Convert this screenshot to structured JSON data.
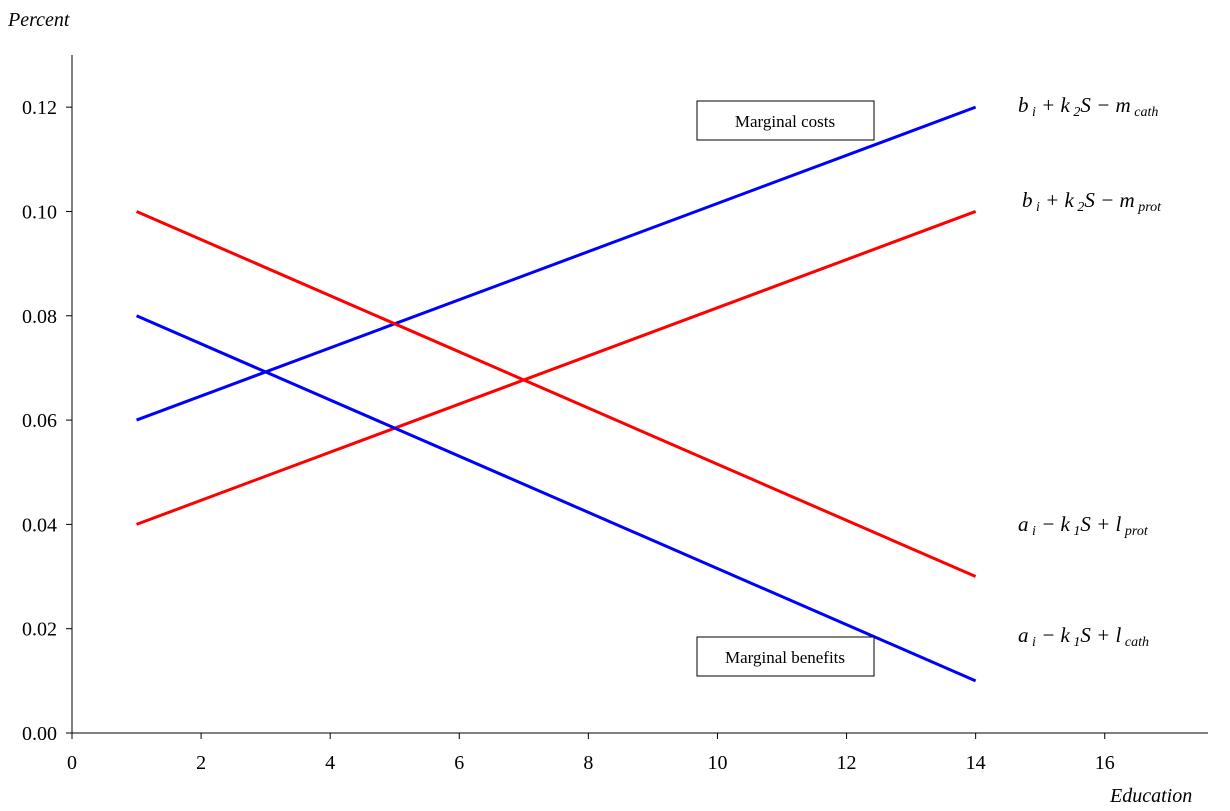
{
  "chart_data": {
    "type": "line",
    "title": "",
    "xlabel": "Education",
    "ylabel": "Percent",
    "xlim": [
      0,
      17.6
    ],
    "ylim": [
      0,
      0.13
    ],
    "xticks": [
      0,
      2,
      4,
      6,
      8,
      10,
      12,
      14,
      16
    ],
    "xtick_labels": [
      "0",
      "2",
      "4",
      "6",
      "8",
      "10",
      "12",
      "14",
      "16"
    ],
    "yticks": [
      0.0,
      0.02,
      0.04,
      0.06,
      0.08,
      0.1,
      0.12
    ],
    "ytick_labels": [
      "0.00",
      "0.02",
      "0.04",
      "0.06",
      "0.08",
      "0.10",
      "0.12"
    ],
    "grid": false,
    "series": [
      {
        "color": "#0000ff",
        "x": [
          1,
          14
        ],
        "y": [
          0.06,
          0.12
        ],
        "label": {
          "parts": [
            [
              "b",
              "main"
            ],
            [
              " i",
              "sub"
            ],
            [
              " + k",
              "main"
            ],
            [
              " 2",
              "sub"
            ],
            [
              "S − m",
              "main"
            ],
            [
              " cath",
              "sub"
            ]
          ]
        }
      },
      {
        "color": "#ff0000",
        "x": [
          1,
          14
        ],
        "y": [
          0.04,
          0.1
        ],
        "label": {
          "parts": [
            [
              "b",
              "main"
            ],
            [
              " i",
              "sub"
            ],
            [
              " + k",
              "main"
            ],
            [
              " 2",
              "sub"
            ],
            [
              "S − m",
              "main"
            ],
            [
              " prot",
              "sub"
            ]
          ]
        }
      },
      {
        "color": "#ff0000",
        "x": [
          1,
          14
        ],
        "y": [
          0.1,
          0.03
        ],
        "label": {
          "parts": [
            [
              "a",
              "main"
            ],
            [
              " i",
              "sub"
            ],
            [
              " − k",
              "main"
            ],
            [
              " 1",
              "sub"
            ],
            [
              "S + l",
              "main"
            ],
            [
              " prot",
              "sub"
            ]
          ]
        }
      },
      {
        "color": "#0000ff",
        "x": [
          1,
          14
        ],
        "y": [
          0.08,
          0.01
        ],
        "label": {
          "parts": [
            [
              "a",
              "main"
            ],
            [
              " i",
              "sub"
            ],
            [
              " − k",
              "main"
            ],
            [
              " 1",
              "sub"
            ],
            [
              "S + l",
              "main"
            ],
            [
              " cath",
              "sub"
            ]
          ]
        }
      }
    ],
    "annotations": [
      {
        "text": "Marginal costs"
      },
      {
        "text": "Marginal benefits"
      }
    ]
  }
}
